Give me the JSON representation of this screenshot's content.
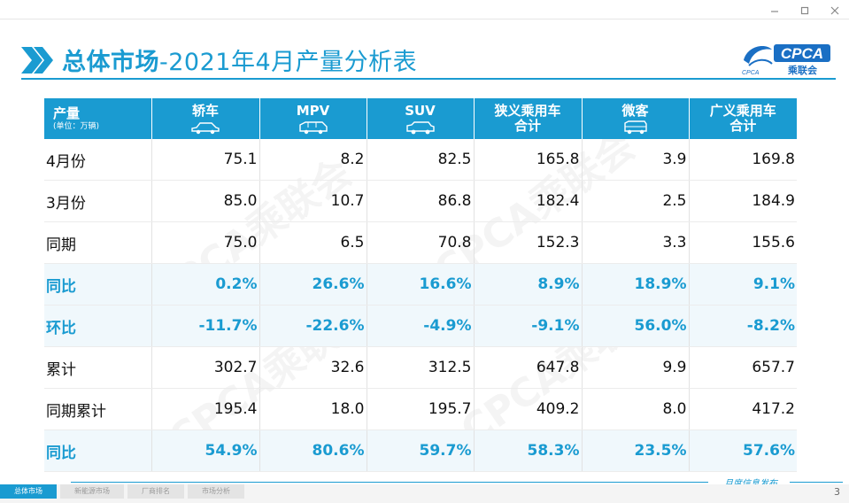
{
  "title": {
    "bold": "总体市场",
    "rest": "-2021年4月产量分析表"
  },
  "logo": {
    "brand": "CPCA",
    "cn": "乘联会",
    "small": "CPCA"
  },
  "header": {
    "col0": {
      "line1": "产量",
      "unit": "(单位：万辆)"
    },
    "cols": [
      {
        "line1": "轿车",
        "line2": "",
        "icon": "sedan-icon"
      },
      {
        "line1": "MPV",
        "line2": "",
        "icon": "mpv-icon"
      },
      {
        "line1": "SUV",
        "line2": "",
        "icon": "suv-icon"
      },
      {
        "line1": "狭义乘用车",
        "line2": "合计",
        "icon": ""
      },
      {
        "line1": "微客",
        "line2": "",
        "icon": "van-icon"
      },
      {
        "line1": "广义乘用车",
        "line2": "合计",
        "icon": ""
      }
    ]
  },
  "rows": [
    {
      "label": "4月份",
      "values": [
        "75.1",
        "8.2",
        "82.5",
        "165.8",
        "3.9",
        "169.8"
      ],
      "highlight": false
    },
    {
      "label": "3月份",
      "values": [
        "85.0",
        "10.7",
        "86.8",
        "182.4",
        "2.5",
        "184.9"
      ],
      "highlight": false
    },
    {
      "label": "同期",
      "values": [
        "75.0",
        "6.5",
        "70.8",
        "152.3",
        "3.3",
        "155.6"
      ],
      "highlight": false
    },
    {
      "label": "同比",
      "values": [
        "0.2%",
        "26.6%",
        "16.6%",
        "8.9%",
        "18.9%",
        "9.1%"
      ],
      "highlight": true
    },
    {
      "label": "环比",
      "values": [
        "-11.7%",
        "-22.6%",
        "-4.9%",
        "-9.1%",
        "56.0%",
        "-8.2%"
      ],
      "highlight": true
    },
    {
      "label": "累计",
      "values": [
        "302.7",
        "32.6",
        "312.5",
        "647.8",
        "9.9",
        "657.7"
      ],
      "highlight": false
    },
    {
      "label": "同期累计",
      "values": [
        "195.4",
        "18.0",
        "195.7",
        "409.2",
        "8.0",
        "417.2"
      ],
      "highlight": false
    },
    {
      "label": "同比",
      "values": [
        "54.9%",
        "80.6%",
        "59.7%",
        "58.3%",
        "23.5%",
        "57.6%"
      ],
      "highlight": true
    }
  ],
  "nav": [
    "总体市场",
    "新能源市场",
    "厂商排名",
    "市场分析"
  ],
  "footer": {
    "text": "月度信息发布",
    "page": "3"
  },
  "colors": {
    "accent": "#1a9bd1",
    "row_highlight": "#f0f8fc"
  }
}
